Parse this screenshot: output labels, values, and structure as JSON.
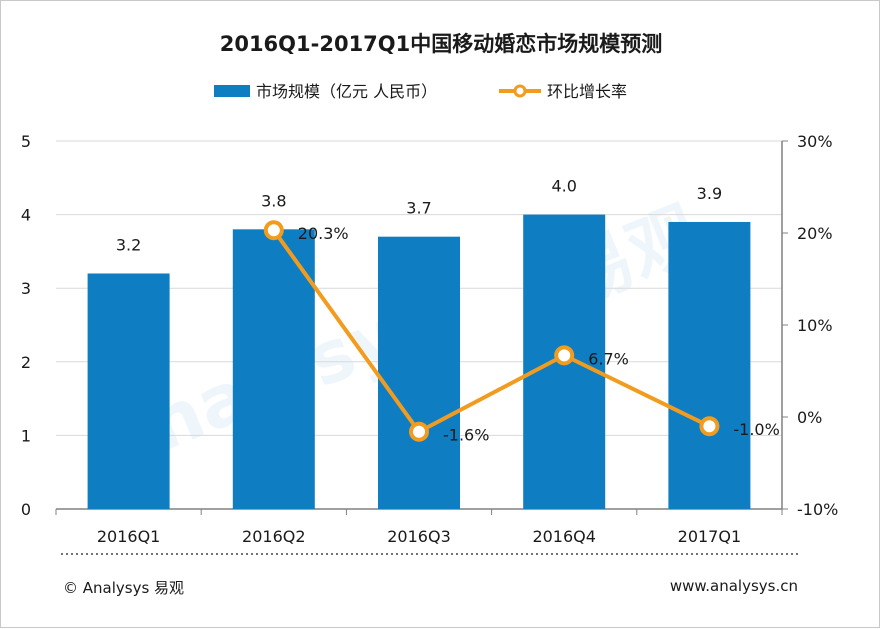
{
  "chart_data": {
    "type": "bar",
    "title": "2016Q1-2017Q1中国移动婚恋市场规模预测",
    "categories": [
      "2016Q1",
      "2016Q2",
      "2016Q3",
      "2016Q4",
      "2017Q1"
    ],
    "series": [
      {
        "name": "市场规模（亿元 人民币）",
        "type": "bar",
        "axis": "left",
        "values": [
          3.2,
          3.8,
          3.7,
          4.0,
          3.9
        ],
        "labels": [
          "3.2",
          "3.8",
          "3.7",
          "4.0",
          "3.9"
        ],
        "color": "#0f7dc2"
      },
      {
        "name": "环比增长率",
        "type": "line",
        "axis": "right",
        "values": [
          null,
          20.3,
          -1.6,
          6.7,
          -1.0
        ],
        "labels": [
          "",
          "20.3%",
          "-1.6%",
          "6.7%",
          "-1.0%"
        ],
        "color": "#f29c1f"
      }
    ],
    "y_left": {
      "min": 0,
      "max": 5,
      "step": 1,
      "tick_labels": [
        "0",
        "1",
        "2",
        "3",
        "4",
        "5"
      ]
    },
    "y_right": {
      "min": -10,
      "max": 30,
      "step": 10,
      "tick_labels": [
        "-10%",
        "0%",
        "10%",
        "20%",
        "30%"
      ]
    },
    "grid": true,
    "legend_position": "top-center"
  },
  "legend": {
    "bar_label": "市场规模（亿元 人民币）",
    "line_label": "环比增长率"
  },
  "footer": {
    "copyright": "© Analysys 易观",
    "website": "www.analysys.cn"
  },
  "watermark": "Analysys 易观 实用 分析 数据",
  "colors": {
    "bar": "#0f7dc2",
    "line": "#f29c1f",
    "grid": "#d9d9d9",
    "axis": "#808080"
  }
}
